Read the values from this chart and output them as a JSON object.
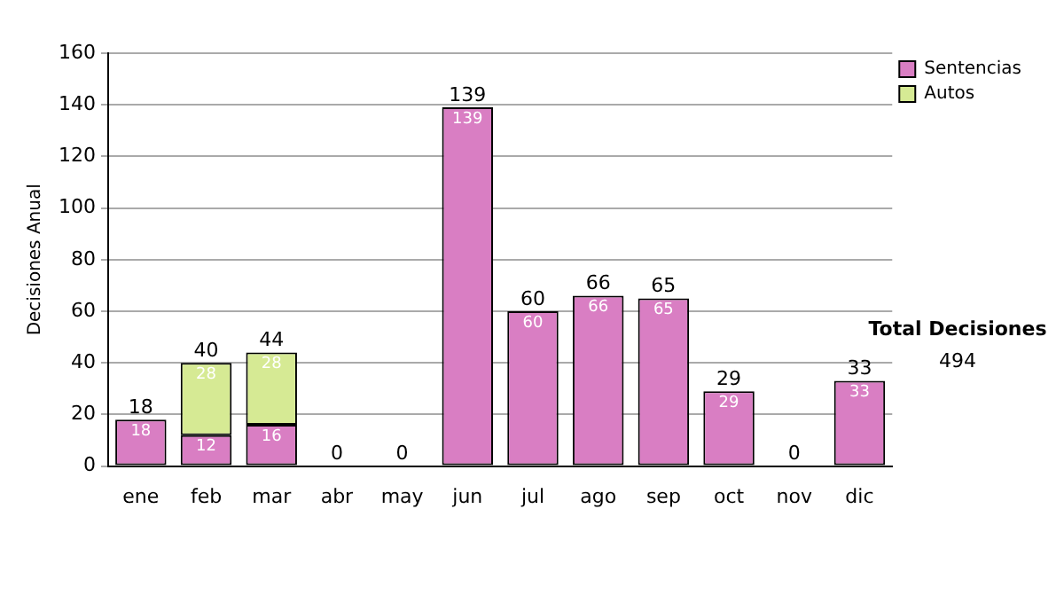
{
  "chart_data": {
    "type": "bar",
    "stacked": true,
    "ylabel": "Decisiones Anual",
    "categories": [
      "ene",
      "feb",
      "mar",
      "abr",
      "may",
      "jun",
      "jul",
      "ago",
      "sep",
      "oct",
      "nov",
      "dic"
    ],
    "series": [
      {
        "name": "Sentencias",
        "color": "#d97ec3",
        "values": [
          18,
          12,
          16,
          0,
          0,
          139,
          60,
          66,
          65,
          29,
          0,
          33
        ],
        "value_labels": [
          "18",
          "12",
          "16",
          null,
          null,
          "139",
          "60",
          "66",
          "65",
          "29",
          null,
          "33"
        ]
      },
      {
        "name": "Autos",
        "color": "#d6ea94",
        "values": [
          0,
          28,
          28,
          0,
          0,
          0,
          0,
          0,
          0,
          0,
          0,
          0
        ],
        "value_labels": [
          null,
          "28",
          "28",
          null,
          null,
          null,
          null,
          null,
          null,
          null,
          null,
          null
        ]
      }
    ],
    "totals": [
      "18",
      "40",
      "44",
      "0",
      "0",
      "139",
      "60",
      "66",
      "65",
      "29",
      "0",
      "33"
    ],
    "ylim": [
      0,
      160
    ],
    "yticks": [
      0,
      20,
      40,
      60,
      80,
      100,
      120,
      140,
      160
    ],
    "grid": "y",
    "legend": "right",
    "annotations": [
      "Total Decisiones",
      "494"
    ]
  }
}
